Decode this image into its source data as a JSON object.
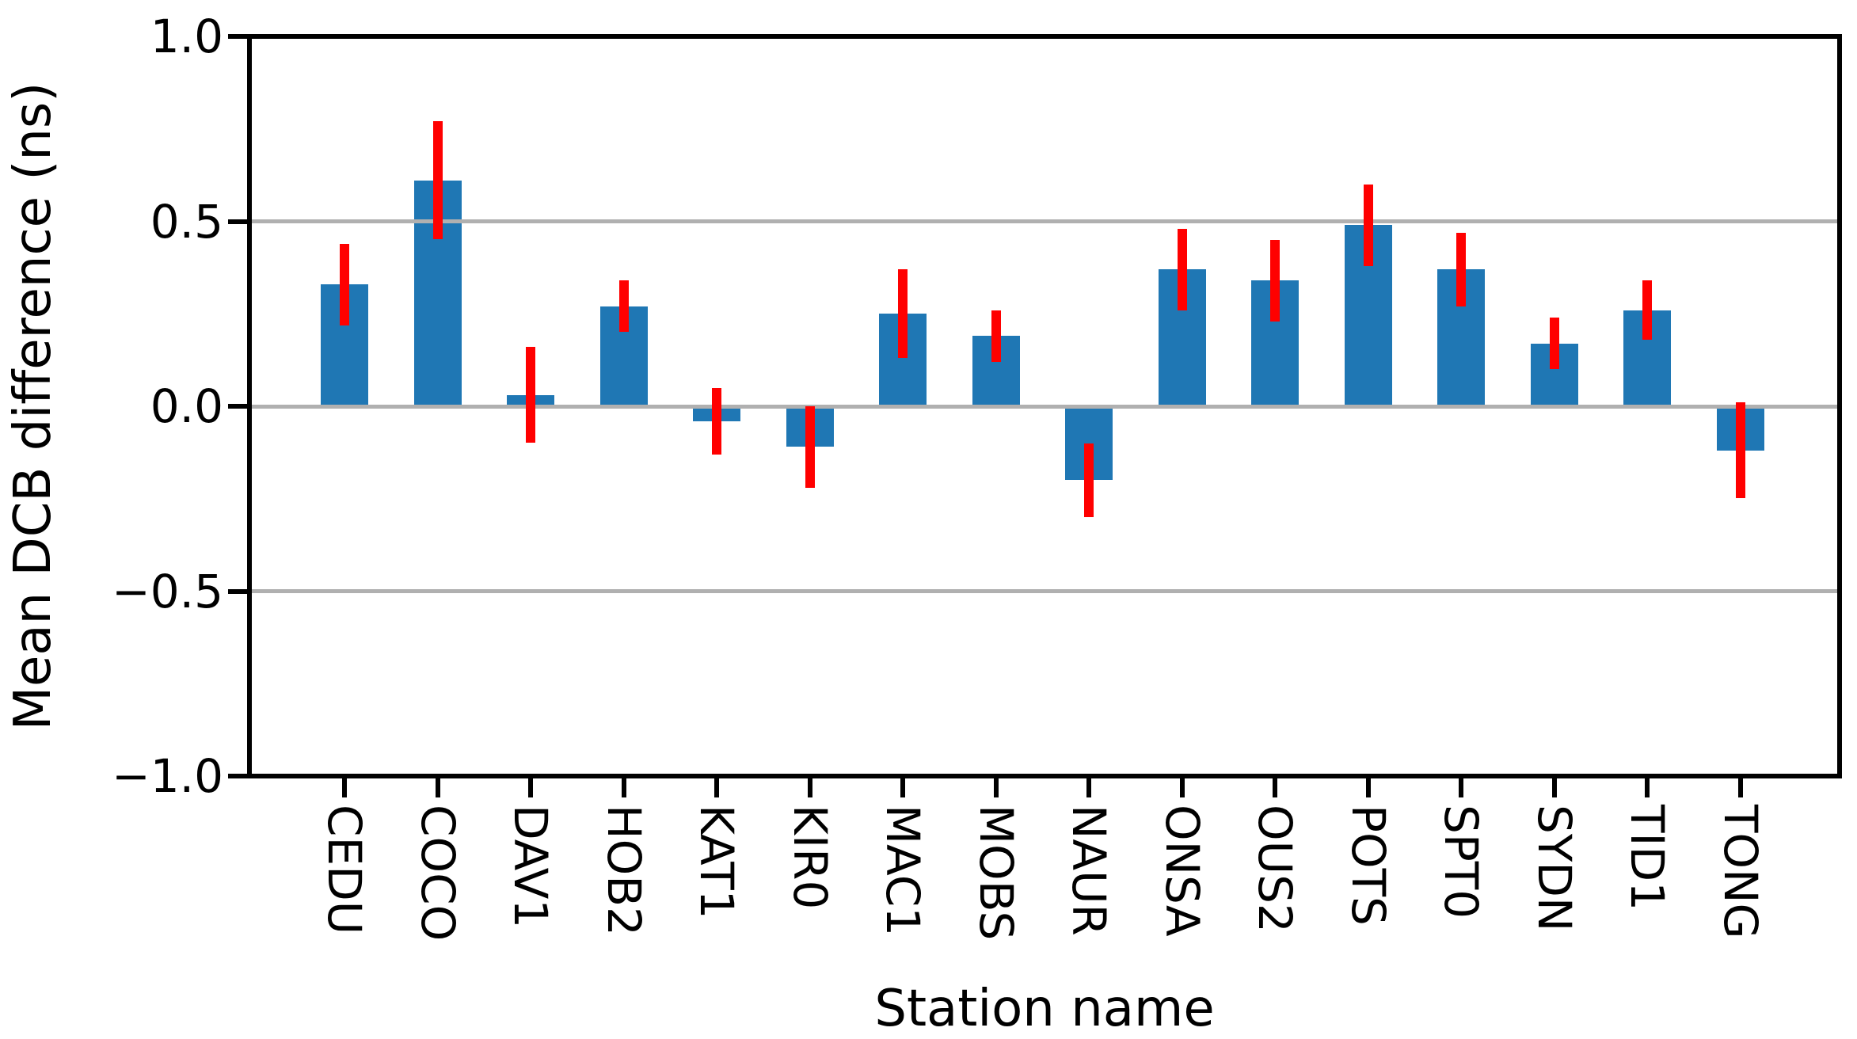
{
  "chart_data": {
    "type": "bar",
    "title": "",
    "xlabel": "Station name",
    "ylabel": "Mean DCB difference (ns)",
    "ylim": [
      -1.0,
      1.0
    ],
    "yticks": [
      {
        "value": 1.0,
        "label": "1.0"
      },
      {
        "value": 0.5,
        "label": "0.5"
      },
      {
        "value": 0.0,
        "label": "0.0"
      },
      {
        "value": -0.5,
        "label": "−0.5"
      },
      {
        "value": -1.0,
        "label": "−1.0"
      }
    ],
    "gridlines": [
      0.5,
      0.0,
      -0.5
    ],
    "grid_on": true,
    "legend": "none",
    "categories": [
      "CEDU",
      "COCO",
      "DAV1",
      "HOB2",
      "KAT1",
      "KIR0",
      "MAC1",
      "MOBS",
      "NAUR",
      "ONSA",
      "OUS2",
      "POTS",
      "SPT0",
      "SYDN",
      "TID1",
      "TONG"
    ],
    "series": [
      {
        "name": "Mean DCB difference",
        "values": [
          0.33,
          0.61,
          0.03,
          0.27,
          -0.04,
          -0.11,
          0.25,
          0.19,
          -0.2,
          0.37,
          0.34,
          0.49,
          0.37,
          0.17,
          0.26,
          -0.12
        ],
        "errors": [
          0.11,
          0.16,
          0.13,
          0.07,
          0.09,
          0.11,
          0.12,
          0.07,
          0.1,
          0.11,
          0.11,
          0.11,
          0.1,
          0.07,
          0.08,
          0.13
        ]
      }
    ],
    "colors": {
      "bar": "#1f77b4",
      "error": "#ff0000",
      "grid": "#b0b0b0",
      "axis": "#000000",
      "background": "#ffffff"
    }
  }
}
